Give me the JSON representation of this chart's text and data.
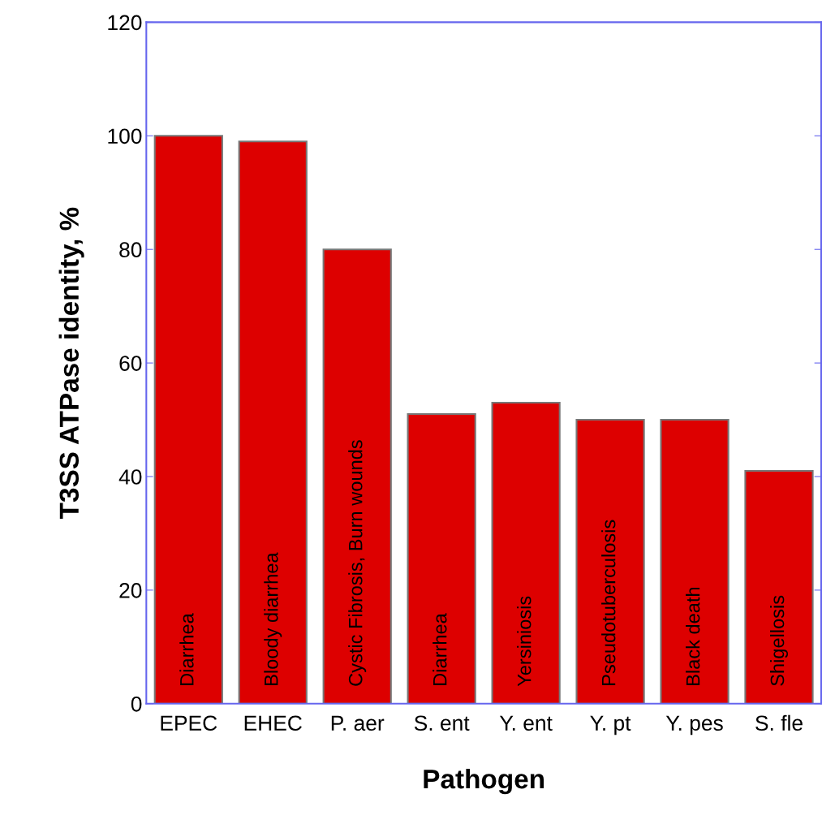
{
  "chart_data": {
    "type": "bar",
    "xlabel": "Pathogen",
    "ylabel": "T3SS ATPase identity, %",
    "categories": [
      "EPEC",
      "EHEC",
      "P. aer",
      "S. ent",
      "Y. ent",
      "Y. pt",
      "Y. pes",
      "S. fle"
    ],
    "values": [
      100,
      99,
      80,
      51,
      53,
      50,
      50,
      41
    ],
    "color": "#dd0000",
    "ylim": [
      0,
      120
    ],
    "yticks": [
      0,
      20,
      40,
      60,
      80,
      100,
      120
    ],
    "grid": false,
    "legend": false,
    "annotations": [
      "Diarrhea",
      "Bloody diarrhea",
      "Cystic Fibrosis, Burn wounds",
      "Diarrhea",
      "Yersiniosis",
      "Pseudotuberculosis",
      "Black death",
      "Shigellosis"
    ]
  }
}
